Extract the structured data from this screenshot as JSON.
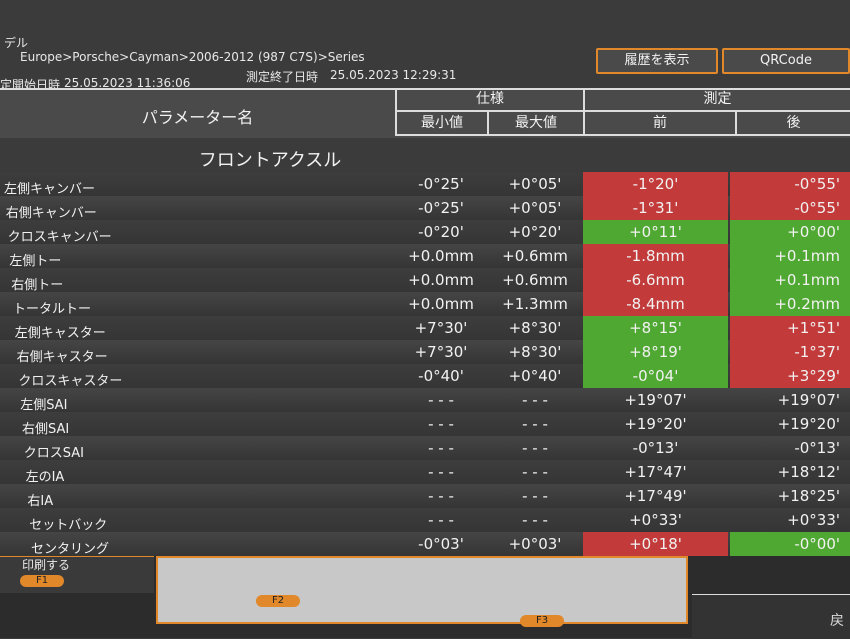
{
  "header": {
    "model_label": "デル",
    "breadcrumb": "Europe>Porsche>Cayman>2006-2012 (987 C7S)>Series",
    "start_label": "定開始日時",
    "start_time": "25.05.2023 11:36:06",
    "end_label": "測定終了日時",
    "end_time": "25.05.2023 12:29:31",
    "buttons": [
      "履歴を表示",
      "QRCode"
    ]
  },
  "table": {
    "param_header": "パラメーター名",
    "spec_header": "仕様",
    "min_header": "最小値",
    "max_header": "最大値",
    "measure_header": "測定",
    "front_header": "前",
    "rear_header": "後",
    "section": "フロントアクスル",
    "rows": [
      {
        "label": "左側キャンバー",
        "min": "-0°25'",
        "max": "+0°05'",
        "front": "-1°20'",
        "rear": "-0°55'",
        "front_color": "#c23a3a",
        "rear_color": "#c23a3a"
      },
      {
        "label": "右側キャンバー",
        "min": "-0°25'",
        "max": "+0°05'",
        "front": "-1°31'",
        "rear": "-0°55'",
        "front_color": "#c23a3a",
        "rear_color": "#c23a3a"
      },
      {
        "label": "クロスキャンバー",
        "min": "-0°20'",
        "max": "+0°20'",
        "front": "+0°11'",
        "rear": "+0°00'",
        "front_color": "#4fa832",
        "rear_color": "#4fa832"
      },
      {
        "label": "左側トー",
        "min": "+0.0mm",
        "max": "+0.6mm",
        "front": "-1.8mm",
        "rear": "+0.1mm",
        "front_color": "#c23a3a",
        "rear_color": "#4fa832"
      },
      {
        "label": "右側トー",
        "min": "+0.0mm",
        "max": "+0.6mm",
        "front": "-6.6mm",
        "rear": "+0.1mm",
        "front_color": "#c23a3a",
        "rear_color": "#4fa832"
      },
      {
        "label": "トータルトー",
        "min": "+0.0mm",
        "max": "+1.3mm",
        "front": "-8.4mm",
        "rear": "+0.2mm",
        "front_color": "#c23a3a",
        "rear_color": "#4fa832"
      },
      {
        "label": "左側キャスター",
        "min": "+7°30'",
        "max": "+8°30'",
        "front": "+8°15'",
        "rear": "+1°51'",
        "front_color": "#4fa832",
        "rear_color": "#c23a3a"
      },
      {
        "label": "右側キャスター",
        "min": "+7°30'",
        "max": "+8°30'",
        "front": "+8°19'",
        "rear": "-1°37'",
        "front_color": "#4fa832",
        "rear_color": "#c23a3a"
      },
      {
        "label": "クロスキャスター",
        "min": "-0°40'",
        "max": "+0°40'",
        "front": "-0°04'",
        "rear": "+3°29'",
        "front_color": "#4fa832",
        "rear_color": "#c23a3a"
      },
      {
        "label": "左側SAI",
        "min": "- - -",
        "max": "- - -",
        "front": "+19°07'",
        "rear": "+19°07'"
      },
      {
        "label": "右側SAI",
        "min": "- - -",
        "max": "- - -",
        "front": "+19°20'",
        "rear": "+19°20'"
      },
      {
        "label": "クロスSAI",
        "min": "- - -",
        "max": "- - -",
        "front": "-0°13'",
        "rear": "-0°13'"
      },
      {
        "label": "左のIA",
        "min": "- - -",
        "max": "- - -",
        "front": "+17°47'",
        "rear": "+18°12'"
      },
      {
        "label": "右IA",
        "min": "- - -",
        "max": "- - -",
        "front": "+17°49'",
        "rear": "+18°25'"
      },
      {
        "label": "セットバック",
        "min": "- - -",
        "max": "- - -",
        "front": "+0°33'",
        "rear": "+0°33'"
      },
      {
        "label": "センタリング",
        "min": "-0°03'",
        "max": "+0°03'",
        "front": "+0°18'",
        "rear": "-0°00'",
        "front_color": "#c23a3a",
        "rear_color": "#4fa832"
      }
    ]
  },
  "footer": {
    "print": "印刷する",
    "keys": [
      "F1",
      "F2",
      "F3"
    ],
    "back": "戻"
  }
}
